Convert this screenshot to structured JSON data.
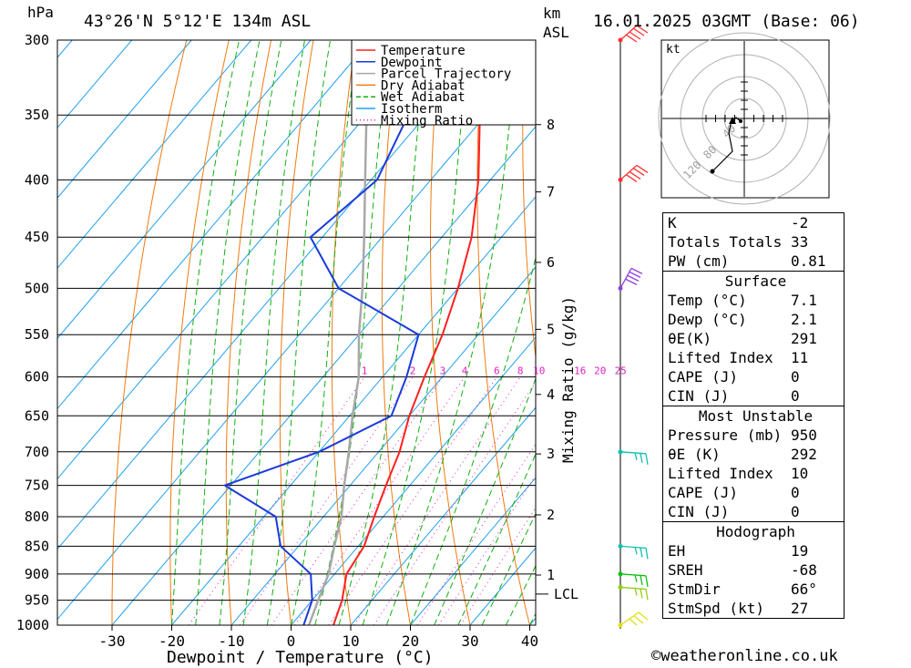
{
  "header": {
    "pressure_unit": "hPa",
    "location": "43°26'N 5°12'E 134m ASL",
    "height_unit_km": "km",
    "height_unit_asl": "ASL",
    "datetime": "16.01.2025 03GMT (Base: 06)"
  },
  "chart_data": {
    "type": "line",
    "xlabel": "Dewpoint / Temperature (°C)",
    "ylabel_left": "hPa",
    "ylabel_right": "Mixing Ratio (g/kg)",
    "x_ticks": [
      -30,
      -20,
      -10,
      0,
      10,
      20,
      30,
      40
    ],
    "xlim": [
      -40,
      40
    ],
    "pressure_levels": [
      300,
      350,
      400,
      450,
      500,
      550,
      600,
      650,
      700,
      750,
      800,
      850,
      900,
      950,
      1000
    ],
    "ylim": [
      1000,
      300
    ],
    "km_ticks": [
      {
        "p": 357,
        "label": "8"
      },
      {
        "p": 410,
        "label": "7"
      },
      {
        "p": 474,
        "label": "6"
      },
      {
        "p": 544,
        "label": "5"
      },
      {
        "p": 622,
        "label": "4"
      },
      {
        "p": 703,
        "label": "3"
      },
      {
        "p": 797,
        "label": "2"
      },
      {
        "p": 902,
        "label": "1"
      }
    ],
    "lcl": {
      "p": 938,
      "label": "LCL"
    },
    "mixing_ratio_labels": [
      "1",
      "2",
      "3",
      "4",
      "6",
      "8",
      "10",
      "16",
      "20",
      "25"
    ],
    "legend": [
      {
        "label": "Temperature",
        "color": "#ff2020"
      },
      {
        "label": "Dewpoint",
        "color": "#1a3adc"
      },
      {
        "label": "Parcel Trajectory",
        "color": "#a8a8a8"
      },
      {
        "label": "Dry Adiabat",
        "color": "#f07a10"
      },
      {
        "label": "Wet Adiabat",
        "color": "#10b010"
      },
      {
        "label": "Isotherm",
        "color": "#20a0f0"
      },
      {
        "label": "Mixing Ratio",
        "color": "#e020c0"
      }
    ],
    "series": [
      {
        "name": "Temperature",
        "color": "#ff2020",
        "points": [
          [
            1000,
            7.1
          ],
          [
            950,
            5
          ],
          [
            900,
            2
          ],
          [
            850,
            1
          ],
          [
            800,
            -1.5
          ],
          [
            750,
            -4
          ],
          [
            700,
            -6.5
          ],
          [
            650,
            -10
          ],
          [
            600,
            -13
          ],
          [
            550,
            -16
          ],
          [
            500,
            -20
          ],
          [
            450,
            -25
          ],
          [
            400,
            -32
          ],
          [
            350,
            -41
          ],
          [
            300,
            -51
          ]
        ]
      },
      {
        "name": "Dewpoint",
        "color": "#1a3adc",
        "points": [
          [
            1000,
            2.1
          ],
          [
            950,
            0
          ],
          [
            900,
            -4
          ],
          [
            850,
            -13
          ],
          [
            800,
            -18
          ],
          [
            750,
            -31
          ],
          [
            700,
            -20
          ],
          [
            650,
            -13
          ],
          [
            600,
            -16
          ],
          [
            550,
            -20
          ],
          [
            500,
            -40
          ],
          [
            450,
            -52
          ],
          [
            400,
            -49
          ],
          [
            350,
            -53
          ],
          [
            300,
            -62
          ]
        ]
      },
      {
        "name": "Parcel Trajectory",
        "color": "#a8a8a8",
        "points": [
          [
            1000,
            3
          ],
          [
            950,
            1
          ],
          [
            900,
            -1
          ],
          [
            850,
            -4
          ],
          [
            800,
            -7
          ],
          [
            750,
            -11
          ],
          [
            700,
            -15
          ],
          [
            650,
            -19.5
          ],
          [
            600,
            -24
          ],
          [
            550,
            -30
          ],
          [
            500,
            -36
          ],
          [
            450,
            -43
          ],
          [
            400,
            -51
          ],
          [
            350,
            -60
          ],
          [
            300,
            -70
          ]
        ]
      }
    ],
    "wind_barbs": [
      {
        "p": 300,
        "color": "#ff3030"
      },
      {
        "p": 400,
        "color": "#ff3030"
      },
      {
        "p": 500,
        "color": "#9040e0"
      },
      {
        "p": 700,
        "color": "#10c0b0"
      },
      {
        "p": 850,
        "color": "#10c0b0"
      },
      {
        "p": 900,
        "color": "#10c010"
      },
      {
        "p": 925,
        "color": "#90d010"
      },
      {
        "p": 1000,
        "color": "#e0e010"
      }
    ],
    "hodograph": {
      "unit_label": "kt",
      "ring_labels": [
        "40",
        "80",
        "120"
      ]
    }
  },
  "indices": {
    "general": [
      {
        "label": "K",
        "value": "-2"
      },
      {
        "label": "Totals Totals",
        "value": "33"
      },
      {
        "label": "PW (cm)",
        "value": "0.81"
      }
    ],
    "surface": {
      "title": "Surface",
      "rows": [
        {
          "label": "Temp (°C)",
          "value": "7.1"
        },
        {
          "label": "Dewp (°C)",
          "value": "2.1"
        },
        {
          "label": "θE(K)",
          "value": "291"
        },
        {
          "label": "Lifted Index",
          "value": "11"
        },
        {
          "label": "CAPE (J)",
          "value": "0"
        },
        {
          "label": "CIN (J)",
          "value": "0"
        }
      ]
    },
    "most_unstable": {
      "title": "Most Unstable",
      "rows": [
        {
          "label": "Pressure (mb)",
          "value": "950"
        },
        {
          "label": "θE (K)",
          "value": "292"
        },
        {
          "label": "Lifted Index",
          "value": "10"
        },
        {
          "label": "CAPE (J)",
          "value": "0"
        },
        {
          "label": "CIN (J)",
          "value": "0"
        }
      ]
    },
    "hodograph": {
      "title": "Hodograph",
      "rows": [
        {
          "label": "EH",
          "value": "19"
        },
        {
          "label": "SREH",
          "value": "-68"
        },
        {
          "label": "StmDir",
          "value": "66°"
        },
        {
          "label": "StmSpd (kt)",
          "value": "27"
        }
      ]
    }
  },
  "footer": "©weatheronline.co.uk"
}
